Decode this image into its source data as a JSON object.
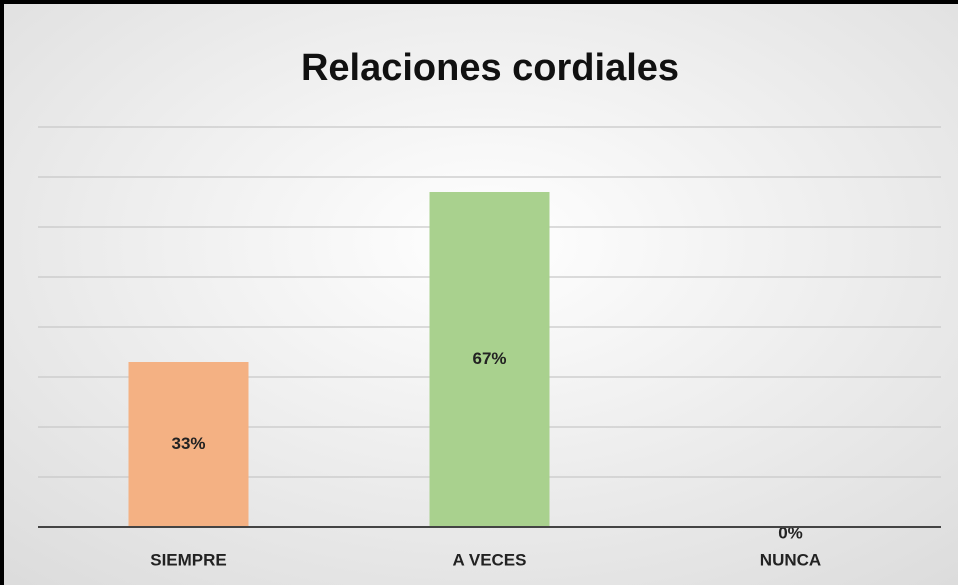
{
  "chart_data": {
    "type": "bar",
    "title": "Relaciones cordiales",
    "categories": [
      "SIEMPRE",
      "A VECES",
      "NUNCA"
    ],
    "values": [
      33,
      67,
      0
    ],
    "value_labels": [
      "33%",
      "67%",
      "0%"
    ],
    "colors": [
      "#f4b183",
      "#a9d18e",
      "#9dc3e6"
    ],
    "ylim": [
      0,
      80
    ],
    "yticks": [
      0,
      10,
      20,
      30,
      40,
      50,
      60,
      70,
      80
    ],
    "grid": true
  }
}
